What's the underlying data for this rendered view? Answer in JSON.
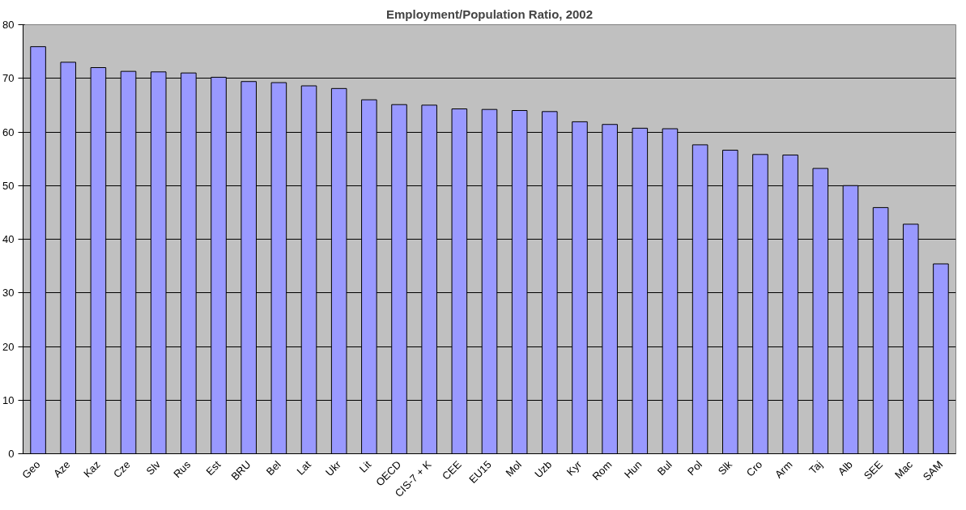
{
  "chart_data": {
    "type": "bar",
    "title": "Employment/Population Ratio, 2002",
    "categories": [
      "Geo",
      "Aze",
      "Kaz",
      "Cze",
      "Slv",
      "Rus",
      "Est",
      "BRU",
      "Bel",
      "Lat",
      "Ukr",
      "Lit",
      "OECD",
      "CIS-7 + K",
      "CEE",
      "EU15",
      "Mol",
      "Uzb",
      "Kyr",
      "Rom",
      "Hun",
      "Bul",
      "Pol",
      "Slk",
      "Cro",
      "Arm",
      "Taj",
      "Alb",
      "SEE",
      "Mac",
      "SAM"
    ],
    "values": [
      75.9,
      73.0,
      72.0,
      71.3,
      71.2,
      71.0,
      70.2,
      69.4,
      69.2,
      68.6,
      68.1,
      66.0,
      65.1,
      65.0,
      64.3,
      64.2,
      64.0,
      63.8,
      61.9,
      61.4,
      60.7,
      60.6,
      57.6,
      56.6,
      55.8,
      55.7,
      53.2,
      50.0,
      45.9,
      42.8,
      35.4
    ],
    "color": "#9999ff",
    "ylim": [
      0,
      80
    ],
    "yticks": [
      0,
      10,
      20,
      30,
      40,
      50,
      60,
      70,
      80
    ],
    "grid": "y"
  }
}
